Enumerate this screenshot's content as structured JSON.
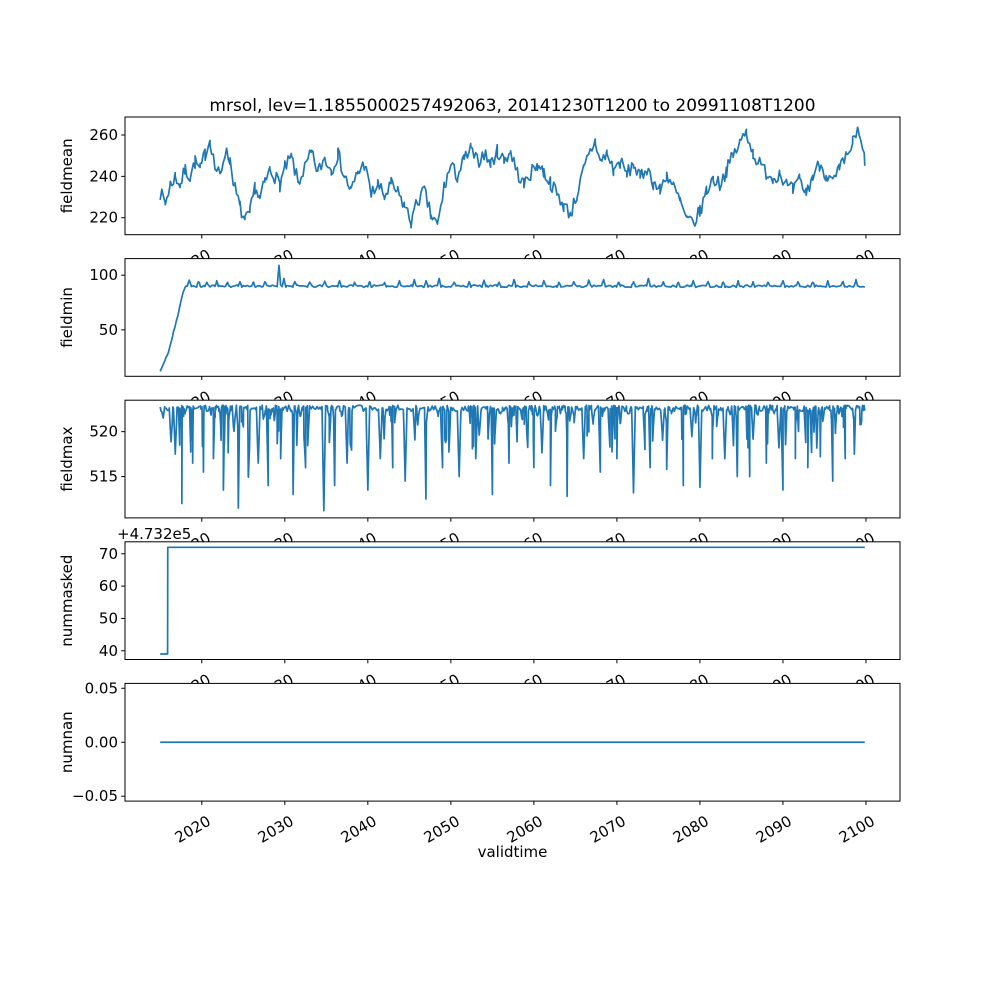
{
  "figure": {
    "title": "mrsol, lev=1.1855000257492063, 20141230T1200 to 20991108T1200",
    "xlabel": "validtime",
    "line_color": "#1f77b4",
    "background_color": "#ffffff",
    "spine_color": "#000000",
    "text_color": "#000000"
  },
  "chart_data": {
    "type": "line",
    "title": "mrsol, lev=1.1855000257492063, 20141230T1200 to 20991108T1200",
    "xlabel": "validtime",
    "x_ticks": [
      2020,
      2030,
      2040,
      2050,
      2060,
      2070,
      2080,
      2090,
      2100
    ],
    "x_tick_labels": [
      "2020",
      "2030",
      "2040",
      "2050",
      "2060",
      "2070",
      "2080",
      "2090",
      "2100"
    ],
    "xlim": [
      2010.75,
      2104.1
    ],
    "x_start": 2014.99,
    "x_end": 2099.86,
    "grid": false,
    "legend": "none",
    "subplots": [
      {
        "ylabel": "fieldmean",
        "yticks": [
          220,
          240,
          260
        ],
        "ytick_labels": [
          "220",
          "240",
          "260"
        ],
        "ylim": [
          211.8,
          268.7
        ],
        "series": {
          "kind": "noisy-keypoints",
          "noise_amp": 3.5,
          "noise_seed": 7,
          "sample_step": 0.2,
          "keypoints": [
            [
              2015.0,
              232
            ],
            [
              2015.6,
              227
            ],
            [
              2016.2,
              236
            ],
            [
              2016.8,
              240
            ],
            [
              2017.4,
              236
            ],
            [
              2018.0,
              243
            ],
            [
              2018.6,
              240
            ],
            [
              2019.2,
              247
            ],
            [
              2019.8,
              243
            ],
            [
              2020.4,
              251
            ],
            [
              2021.0,
              258
            ],
            [
              2021.6,
              244
            ],
            [
              2022.2,
              240
            ],
            [
              2022.8,
              252
            ],
            [
              2023.4,
              248
            ],
            [
              2024.0,
              234
            ],
            [
              2024.6,
              225
            ],
            [
              2025.2,
              218
            ],
            [
              2025.8,
              222
            ],
            [
              2026.4,
              235
            ],
            [
              2027.0,
              229
            ],
            [
              2027.6,
              237
            ],
            [
              2028.2,
              243
            ],
            [
              2028.8,
              240
            ],
            [
              2029.4,
              236
            ],
            [
              2030.0,
              244
            ],
            [
              2030.8,
              249
            ],
            [
              2031.6,
              237
            ],
            [
              2032.4,
              244
            ],
            [
              2033.2,
              251
            ],
            [
              2034.0,
              242
            ],
            [
              2034.8,
              249
            ],
            [
              2035.6,
              243
            ],
            [
              2036.4,
              251
            ],
            [
              2037.2,
              240
            ],
            [
              2038.0,
              233
            ],
            [
              2038.8,
              242
            ],
            [
              2039.6,
              246
            ],
            [
              2040.4,
              231
            ],
            [
              2041.2,
              236
            ],
            [
              2042.0,
              230
            ],
            [
              2042.8,
              236
            ],
            [
              2043.6,
              232
            ],
            [
              2044.4,
              226
            ],
            [
              2045.2,
              218
            ],
            [
              2046.0,
              228
            ],
            [
              2046.8,
              233
            ],
            [
              2047.6,
              221
            ],
            [
              2048.4,
              216
            ],
            [
              2049.2,
              235
            ],
            [
              2050.0,
              245
            ],
            [
              2050.8,
              240
            ],
            [
              2051.6,
              248
            ],
            [
              2052.4,
              253
            ],
            [
              2053.2,
              247
            ],
            [
              2054.0,
              251
            ],
            [
              2054.8,
              246
            ],
            [
              2055.6,
              252
            ],
            [
              2056.4,
              248
            ],
            [
              2057.2,
              252
            ],
            [
              2058.0,
              242
            ],
            [
              2058.8,
              236
            ],
            [
              2059.6,
              241
            ],
            [
              2060.4,
              246
            ],
            [
              2061.2,
              242
            ],
            [
              2062.0,
              237
            ],
            [
              2062.8,
              231
            ],
            [
              2063.6,
              226
            ],
            [
              2064.4,
              222
            ],
            [
              2065.2,
              231
            ],
            [
              2066.0,
              243
            ],
            [
              2066.8,
              252
            ],
            [
              2067.4,
              257
            ],
            [
              2068.0,
              247
            ],
            [
              2068.8,
              251
            ],
            [
              2069.6,
              243
            ],
            [
              2070.4,
              247
            ],
            [
              2071.2,
              241
            ],
            [
              2072.0,
              246
            ],
            [
              2072.8,
              239
            ],
            [
              2073.6,
              244
            ],
            [
              2074.4,
              237
            ],
            [
              2075.2,
              233
            ],
            [
              2076.0,
              241
            ],
            [
              2076.8,
              235
            ],
            [
              2077.6,
              228
            ],
            [
              2078.4,
              219
            ],
            [
              2079.2,
              217
            ],
            [
              2080.0,
              223
            ],
            [
              2080.8,
              233
            ],
            [
              2081.6,
              239
            ],
            [
              2082.4,
              236
            ],
            [
              2083.2,
              243
            ],
            [
              2084.0,
              250
            ],
            [
              2084.8,
              256
            ],
            [
              2085.6,
              262
            ],
            [
              2086.4,
              251
            ],
            [
              2087.2,
              246
            ],
            [
              2088.0,
              242
            ],
            [
              2088.8,
              239
            ],
            [
              2089.6,
              242
            ],
            [
              2090.4,
              236
            ],
            [
              2091.2,
              233
            ],
            [
              2092.0,
              238
            ],
            [
              2092.8,
              232
            ],
            [
              2093.6,
              240
            ],
            [
              2094.4,
              246
            ],
            [
              2095.2,
              241
            ],
            [
              2096.0,
              237
            ],
            [
              2096.8,
              243
            ],
            [
              2097.6,
              249
            ],
            [
              2098.4,
              256
            ],
            [
              2099.0,
              262
            ],
            [
              2099.86,
              248
            ]
          ]
        }
      },
      {
        "ylabel": "fieldmin",
        "yticks": [
          50,
          100
        ],
        "ytick_labels": [
          "50",
          "100"
        ],
        "ylim": [
          7.5,
          115.2
        ],
        "series": {
          "kind": "noisy-keypoints",
          "noise_amp": 1.1,
          "noise_seed": 11,
          "sample_step": 0.25,
          "keypoints": [
            [
              2014.99,
              12
            ],
            [
              2015.4,
              19
            ],
            [
              2015.8,
              26
            ],
            [
              2016.1,
              33
            ],
            [
              2016.35,
              40
            ],
            [
              2016.6,
              48
            ],
            [
              2016.85,
              55
            ],
            [
              2017.1,
              63
            ],
            [
              2017.35,
              72
            ],
            [
              2017.6,
              80
            ],
            [
              2017.85,
              87
            ],
            [
              2018.1,
              90
            ],
            [
              2099.86,
              90
            ]
          ],
          "spikes": [
            [
              2018.5,
              95
            ],
            [
              2019.6,
              94
            ],
            [
              2020.6,
              93.5
            ],
            [
              2021.8,
              95
            ],
            [
              2023.1,
              93.5
            ],
            [
              2024.6,
              94
            ],
            [
              2026.2,
              93.5
            ],
            [
              2027.6,
              94
            ],
            [
              2029.3,
              109
            ],
            [
              2029.9,
              97
            ],
            [
              2031.2,
              94
            ],
            [
              2033.0,
              93.5
            ],
            [
              2034.8,
              94.5
            ],
            [
              2036.6,
              95
            ],
            [
              2038.4,
              93.5
            ],
            [
              2040.2,
              94
            ],
            [
              2042.0,
              93.5
            ],
            [
              2043.8,
              95
            ],
            [
              2045.6,
              96
            ],
            [
              2047.0,
              95
            ],
            [
              2048.6,
              97
            ],
            [
              2050.4,
              93.5
            ],
            [
              2052.2,
              94
            ],
            [
              2054.0,
              95
            ],
            [
              2055.8,
              93.5
            ],
            [
              2057.6,
              96
            ],
            [
              2059.4,
              94
            ],
            [
              2061.2,
              95
            ],
            [
              2063.0,
              93.5
            ],
            [
              2064.8,
              94
            ],
            [
              2066.6,
              95.5
            ],
            [
              2068.4,
              96
            ],
            [
              2070.2,
              93.5
            ],
            [
              2072.0,
              94
            ],
            [
              2073.8,
              97
            ],
            [
              2075.6,
              94
            ],
            [
              2077.4,
              93.5
            ],
            [
              2079.2,
              95
            ],
            [
              2081.0,
              94
            ],
            [
              2082.8,
              93.5
            ],
            [
              2084.6,
              95
            ],
            [
              2086.4,
              94
            ],
            [
              2088.2,
              93.5
            ],
            [
              2090.0,
              95
            ],
            [
              2091.8,
              94
            ],
            [
              2093.6,
              93.5
            ],
            [
              2095.4,
              95
            ],
            [
              2097.2,
              94
            ],
            [
              2098.8,
              96
            ]
          ]
        }
      },
      {
        "ylabel": "fieldmax",
        "yticks": [
          515,
          520
        ],
        "ytick_labels": [
          "515",
          "520"
        ],
        "ylim": [
          510.4,
          523.5
        ],
        "series": {
          "kind": "baseline-spikes",
          "baseline": 522.6,
          "noise_amp": 0.35,
          "noise_seed": 3,
          "sample_step": 0.18,
          "major_spikes": [
            [
              2016.8,
              517.5
            ],
            [
              2017.6,
              512.0
            ],
            [
              2018.9,
              516.5
            ],
            [
              2020.2,
              515.5
            ],
            [
              2021.4,
              517
            ],
            [
              2022.6,
              513.5
            ],
            [
              2024.4,
              511.5
            ],
            [
              2025.6,
              515
            ],
            [
              2026.8,
              516.5
            ],
            [
              2028.0,
              514
            ],
            [
              2029.5,
              517
            ],
            [
              2031.0,
              513
            ],
            [
              2032.5,
              516
            ],
            [
              2034.7,
              511.2
            ],
            [
              2036.0,
              514
            ],
            [
              2037.5,
              516.5
            ],
            [
              2040.0,
              513.5
            ],
            [
              2041.5,
              517
            ],
            [
              2043.0,
              516
            ],
            [
              2044.5,
              514.5
            ],
            [
              2047.0,
              512.5
            ],
            [
              2049.0,
              516
            ],
            [
              2051.0,
              515
            ],
            [
              2053.0,
              517
            ],
            [
              2055.0,
              513
            ],
            [
              2057.0,
              516.5
            ],
            [
              2060.0,
              516
            ],
            [
              2062.0,
              514
            ],
            [
              2064.0,
              512.8
            ],
            [
              2066.0,
              517
            ],
            [
              2068.0,
              515.5
            ],
            [
              2070.0,
              517
            ],
            [
              2072.0,
              513.2
            ],
            [
              2074.0,
              516
            ],
            [
              2076.0,
              515.8
            ],
            [
              2078.0,
              514
            ],
            [
              2080.0,
              513.8
            ],
            [
              2081.5,
              517
            ],
            [
              2083.0,
              517
            ],
            [
              2084.5,
              515
            ],
            [
              2086.0,
              515
            ],
            [
              2088.0,
              516.5
            ],
            [
              2090.0,
              513.5
            ],
            [
              2091.5,
              517
            ],
            [
              2093.0,
              516
            ],
            [
              2094.5,
              517.2
            ],
            [
              2096.0,
              514.5
            ],
            [
              2097.5,
              517
            ],
            [
              2098.6,
              517.5
            ]
          ],
          "minor_spikes": {
            "count": 170,
            "depth_min": 0.6,
            "depth_max": 5.0,
            "seed": 19
          }
        }
      },
      {
        "ylabel": "nummasked",
        "yticks": [
          40,
          50,
          60,
          70
        ],
        "ytick_labels": [
          "40",
          "50",
          "60",
          "70"
        ],
        "ylim": [
          37.3,
          73.7
        ],
        "offset_text": "+4.732e5",
        "offset_value": 473200,
        "series": {
          "kind": "points",
          "points": [
            [
              2014.99,
              39
            ],
            [
              2015.88,
              39
            ],
            [
              2015.9,
              72
            ],
            [
              2099.86,
              72
            ]
          ]
        }
      },
      {
        "ylabel": "numnan",
        "yticks": [
          -0.05,
          0.0,
          0.05
        ],
        "ytick_labels": [
          "−0.05",
          "0.00",
          "0.05"
        ],
        "ylim": [
          -0.0545,
          0.0545
        ],
        "series": {
          "kind": "points",
          "points": [
            [
              2014.99,
              0
            ],
            [
              2099.86,
              0
            ]
          ]
        }
      }
    ]
  }
}
